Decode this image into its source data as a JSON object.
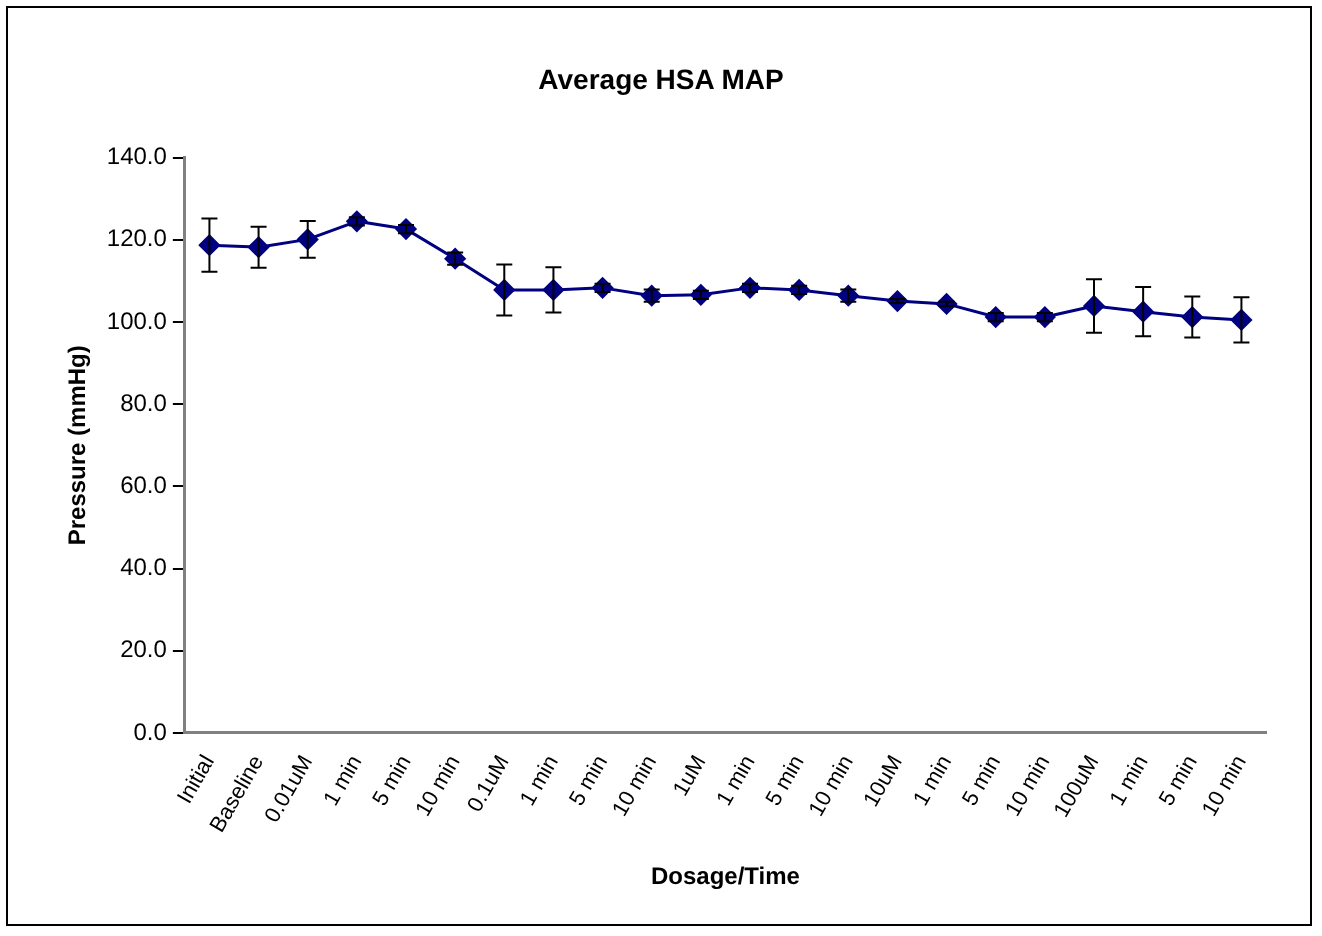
{
  "chart_data": {
    "type": "line",
    "title": "Average HSA MAP",
    "xlabel": "Dosage/Time",
    "ylabel": "Pressure (mmHg)",
    "categories": [
      "Initial",
      "Baseline",
      "0.01uM",
      "1 min",
      "5 min",
      "10 min",
      "0.1uM",
      "1 min",
      "5 min",
      "10 min",
      "1uM",
      "1 min",
      "5 min",
      "10 min",
      "10uM",
      "1 min",
      "5 min",
      "10 min",
      "100uM",
      "1 min",
      "5 min",
      "10 min"
    ],
    "series": [
      {
        "color": "#000080",
        "values": [
          118.7,
          118.2,
          120.1,
          124.5,
          122.6,
          115.4,
          107.8,
          107.8,
          108.3,
          106.4,
          106.6,
          108.3,
          107.8,
          106.4,
          105.1,
          104.4,
          101.2,
          101.2,
          103.9,
          102.5,
          101.2,
          100.5
        ],
        "errors": [
          6.5,
          5,
          4.5,
          1,
          1,
          1.5,
          6.2,
          5.5,
          1,
          1.5,
          1,
          1,
          1,
          1.5,
          0.5,
          0.5,
          1,
          1,
          6.5,
          6,
          5,
          5.5
        ]
      }
    ],
    "ylim": [
      0,
      140
    ],
    "yticks": [
      {
        "value": 0,
        "label": "0.0"
      },
      {
        "value": 20,
        "label": "20.0"
      },
      {
        "value": 40,
        "label": "40.0"
      },
      {
        "value": 60,
        "label": "60.0"
      },
      {
        "value": 80,
        "label": "80.0"
      },
      {
        "value": 100,
        "label": "100.0"
      },
      {
        "value": 120,
        "label": "120.0"
      },
      {
        "value": 140,
        "label": "140.0"
      }
    ],
    "grid": false,
    "legend": false,
    "marker": "diamond",
    "line_style": "solid"
  }
}
